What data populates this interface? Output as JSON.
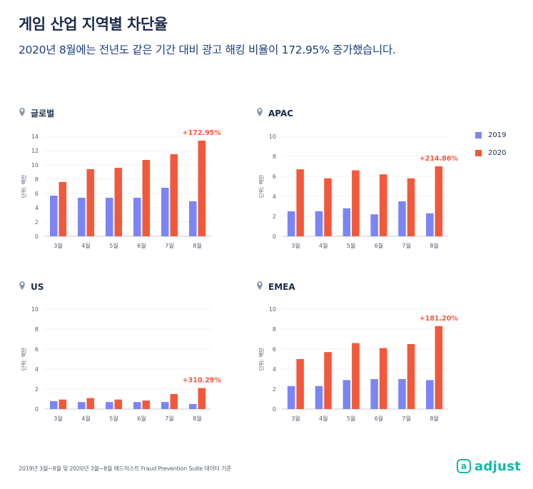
{
  "header": {
    "title": "게임 산업 지역별 차단율",
    "subtitle": "2020년 8월에는 전년도 같은 기간 대비 광고 해킹 비율이 172.95% 증가했습니다."
  },
  "legend": {
    "items": [
      {
        "label": "2019",
        "color": "#7b85f7"
      },
      {
        "label": "2020",
        "color": "#f4583b"
      }
    ]
  },
  "footnote": "2019년 3월~8월 및 2020년 3월~8월 애드저스트 Fraud Prevention Suite 데이터 기준",
  "logo": {
    "text": "adjust"
  },
  "colors": {
    "series_2019": "#7b85f7",
    "series_2020": "#f4583b",
    "accent": "#12b8a6"
  },
  "chart_data": [
    {
      "type": "bar",
      "title": "글로벌",
      "categories": [
        "3월",
        "4월",
        "5월",
        "6월",
        "7월",
        "8월"
      ],
      "ylabel": "단위: 백만",
      "ylim": [
        0,
        14
      ],
      "yticks": [
        0,
        2,
        4,
        6,
        8,
        10,
        12,
        14
      ],
      "series": [
        {
          "name": "2019",
          "values": [
            5.7,
            5.4,
            5.4,
            5.4,
            6.8,
            4.9
          ]
        },
        {
          "name": "2020",
          "values": [
            7.6,
            9.4,
            9.6,
            10.7,
            11.5,
            13.4
          ]
        }
      ],
      "annotation": "+172.95%"
    },
    {
      "type": "bar",
      "title": "APAC",
      "categories": [
        "3월",
        "4월",
        "5월",
        "6월",
        "7월",
        "8월"
      ],
      "ylabel": "단위: 백만",
      "ylim": [
        0,
        10
      ],
      "yticks": [
        0,
        2,
        4,
        6,
        8,
        10
      ],
      "series": [
        {
          "name": "2019",
          "values": [
            2.5,
            2.5,
            2.8,
            2.2,
            3.5,
            2.3
          ]
        },
        {
          "name": "2020",
          "values": [
            6.7,
            5.8,
            6.6,
            6.2,
            5.8,
            7.0
          ]
        }
      ],
      "annotation": "+214.86%"
    },
    {
      "type": "bar",
      "title": "US",
      "categories": [
        "3월",
        "4월",
        "5월",
        "6월",
        "7월",
        "8월"
      ],
      "ylabel": "단위: 백만",
      "ylim": [
        0,
        10
      ],
      "yticks": [
        0,
        2,
        4,
        6,
        8,
        10
      ],
      "series": [
        {
          "name": "2019",
          "values": [
            0.8,
            0.7,
            0.7,
            0.7,
            0.7,
            0.5
          ]
        },
        {
          "name": "2020",
          "values": [
            0.95,
            1.1,
            0.95,
            0.85,
            1.5,
            2.1
          ]
        }
      ],
      "annotation": "+310.29%"
    },
    {
      "type": "bar",
      "title": "EMEA",
      "categories": [
        "3월",
        "4월",
        "5월",
        "6월",
        "7월",
        "8월"
      ],
      "ylabel": "단위: 백만",
      "ylim": [
        0,
        10
      ],
      "yticks": [
        0,
        2,
        4,
        6,
        8,
        10
      ],
      "series": [
        {
          "name": "2019",
          "values": [
            2.3,
            2.3,
            2.9,
            3.0,
            3.0,
            2.9
          ]
        },
        {
          "name": "2020",
          "values": [
            5.0,
            5.7,
            6.6,
            6.1,
            6.5,
            8.3
          ]
        }
      ],
      "annotation": "+181.20%"
    }
  ]
}
